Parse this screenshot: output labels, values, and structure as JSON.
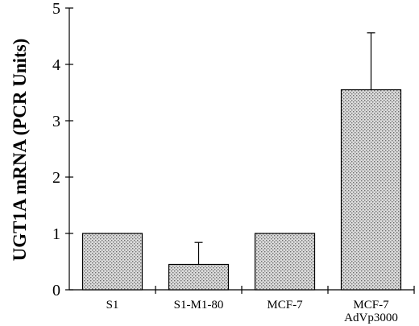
{
  "chart_data": {
    "type": "bar",
    "title": "",
    "xlabel": "",
    "ylabel": "UGT1A mRNA (PCR Units)",
    "ylim": [
      0,
      5
    ],
    "yticks": [
      0,
      1,
      2,
      3,
      4,
      5
    ],
    "grid": false,
    "categories": [
      [
        "S1"
      ],
      [
        "S1-M1-80"
      ],
      [
        "MCF-7"
      ],
      [
        "MCF-7",
        "AdVp3000"
      ]
    ],
    "values": [
      1.0,
      0.45,
      1.0,
      3.55
    ],
    "error_upper": [
      0.0,
      0.39,
      0.0,
      1.01
    ],
    "bar_fill": "stippled-gray",
    "colors": {
      "bar": "#dcdcdc",
      "dot": "#6e6e6e",
      "ink": "#000000"
    }
  }
}
